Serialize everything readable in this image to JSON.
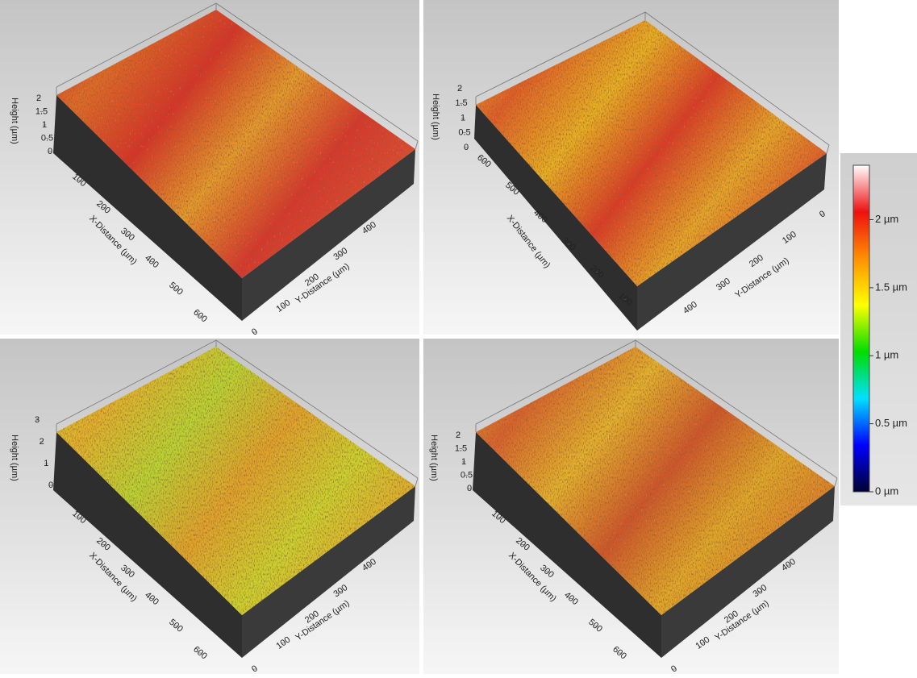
{
  "panels": [
    {
      "z_label": "Height (µm)",
      "x_label": "X-Distance (µm)",
      "y_label": "Y-Distance (µm)",
      "xlim": [
        0,
        600
      ],
      "xticks": [
        100,
        200,
        300,
        400,
        500,
        600
      ],
      "ylim": [
        0,
        400
      ],
      "yticks": [
        0,
        100,
        200,
        300,
        400
      ],
      "zlim": [
        0,
        2
      ],
      "zticks": [
        0,
        0.5,
        1,
        1.5,
        2
      ]
    },
    {
      "z_label": "Height (µm)",
      "x_label": "X-Distance (µm)",
      "y_label": "Y-Distance (µm)",
      "xlim": [
        0,
        600
      ],
      "xticks": [
        100,
        200,
        300,
        400,
        500,
        600
      ],
      "ylim": [
        0,
        400
      ],
      "yticks": [
        0,
        100,
        200,
        300,
        400
      ],
      "zlim": [
        0,
        2
      ],
      "zticks": [
        0,
        0.5,
        1,
        1.5,
        2
      ]
    },
    {
      "z_label": "Height (µm)",
      "x_label": "X-Distance (µm)",
      "y_label": "Y-Distance (µm)",
      "xlim": [
        0,
        600
      ],
      "xticks": [
        100,
        200,
        300,
        400,
        500,
        600
      ],
      "ylim": [
        0,
        400
      ],
      "yticks": [
        0,
        100,
        200,
        300,
        400
      ],
      "zlim": [
        0,
        3
      ],
      "zticks": [
        0,
        1,
        2,
        3
      ]
    },
    {
      "z_label": "Height (µm)",
      "x_label": "X-Distance (µm)",
      "y_label": "Y-Distance (µm)",
      "xlim": [
        0,
        600
      ],
      "xticks": [
        100,
        200,
        300,
        400,
        500,
        600
      ],
      "ylim": [
        0,
        400
      ],
      "yticks": [
        0,
        100,
        200,
        300,
        400
      ],
      "zlim": [
        0,
        2
      ],
      "zticks": [
        0,
        0.5,
        1,
        1.5,
        2
      ]
    }
  ],
  "colorbar": {
    "clim": [
      0,
      2.4
    ],
    "colormap": [
      "#000033",
      "#0000ff",
      "#00e0ff",
      "#00dd00",
      "#ffff00",
      "#ff9000",
      "#ee1010",
      "#ffffff"
    ],
    "ticks": [
      {
        "value": 0,
        "label": "0 µm"
      },
      {
        "value": 0.5,
        "label": "0.5 µm"
      },
      {
        "value": 1,
        "label": "1 µm"
      },
      {
        "value": 1.5,
        "label": "1.5 µm"
      },
      {
        "value": 2,
        "label": "2 µm"
      }
    ]
  }
}
